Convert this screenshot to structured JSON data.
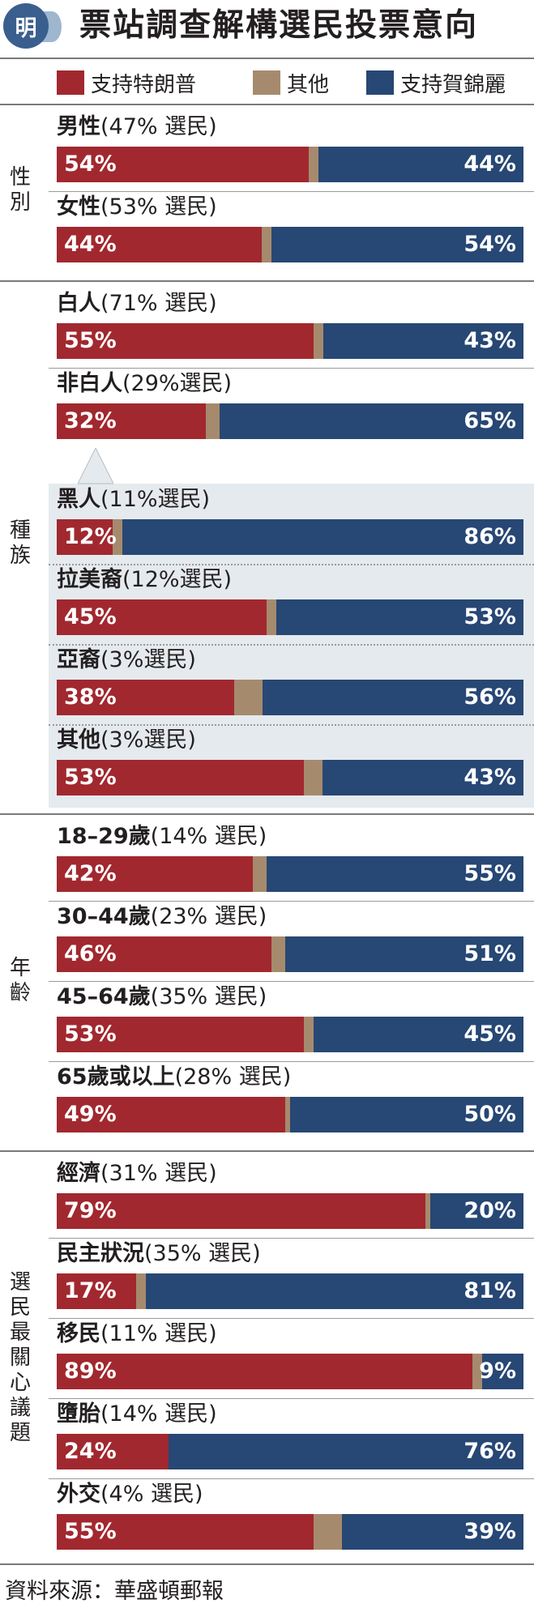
{
  "header": {
    "logo_char": "明",
    "title": "票站調查解構選民投票意向"
  },
  "legend": {
    "items": [
      {
        "label": "支持特朗普",
        "color": "#a1282f"
      },
      {
        "label": "其他",
        "color": "#a68a6d"
      },
      {
        "label": "支持賀錦麗",
        "color": "#274774"
      }
    ]
  },
  "groups": [
    {
      "label": "性\n別"
    },
    {
      "label": "種\n族"
    },
    {
      "label": "年\n齡"
    },
    {
      "label": "選\n民\n最\n關\n心\n議\n題"
    }
  ],
  "chart_data": {
    "type": "bar",
    "title": "票站調查解構選民投票意向",
    "stacked": true,
    "orientation": "horizontal",
    "series_names": [
      "支持特朗普",
      "其他",
      "支持賀錦麗"
    ],
    "rows": [
      {
        "group": 0,
        "name": "男性",
        "share": "(47% 選民)",
        "trump": 54,
        "other": 2,
        "harris": 44
      },
      {
        "group": 0,
        "name": "女性",
        "share": "(53% 選民)",
        "trump": 44,
        "other": 2,
        "harris": 54
      },
      {
        "group": 1,
        "name": "白人",
        "share": "(71% 選民)",
        "trump": 55,
        "other": 2,
        "harris": 43
      },
      {
        "group": 1,
        "name": "非白人",
        "share": "(29%選民)",
        "trump": 32,
        "other": 3,
        "harris": 65
      },
      {
        "group": 1,
        "name": "黑人",
        "share": "(11%選民)",
        "trump": 12,
        "other": 2,
        "harris": 86,
        "sub": true
      },
      {
        "group": 1,
        "name": "拉美裔",
        "share": "(12%選民)",
        "trump": 45,
        "other": 2,
        "harris": 53,
        "sub": true
      },
      {
        "group": 1,
        "name": "亞裔",
        "share": "(3%選民)",
        "trump": 38,
        "other": 6,
        "harris": 56,
        "sub": true
      },
      {
        "group": 1,
        "name": "其他",
        "share": "(3%選民)",
        "trump": 53,
        "other": 4,
        "harris": 43,
        "sub": true
      },
      {
        "group": 2,
        "name": "18–29歲",
        "share": "(14% 選民)",
        "trump": 42,
        "other": 3,
        "harris": 55
      },
      {
        "group": 2,
        "name": "30–44歲",
        "share": "(23% 選民)",
        "trump": 46,
        "other": 3,
        "harris": 51
      },
      {
        "group": 2,
        "name": "45–64歲",
        "share": "(35% 選民)",
        "trump": 53,
        "other": 2,
        "harris": 45
      },
      {
        "group": 2,
        "name": "65歲或以上",
        "share": "(28% 選民)",
        "trump": 49,
        "other": 1,
        "harris": 50
      },
      {
        "group": 3,
        "name": "經濟",
        "share": "(31% 選民)",
        "trump": 79,
        "other": 1,
        "harris": 20
      },
      {
        "group": 3,
        "name": "民主狀況",
        "share": "(35% 選民)",
        "trump": 17,
        "other": 2,
        "harris": 81
      },
      {
        "group": 3,
        "name": "移民",
        "share": "(11% 選民)",
        "trump": 89,
        "other": 2,
        "harris": 9
      },
      {
        "group": 3,
        "name": "墮胎",
        "share": "(14% 選民)",
        "trump": 24,
        "other": 0,
        "harris": 76
      },
      {
        "group": 3,
        "name": "外交",
        "share": "(4% 選民)",
        "trump": 55,
        "other": 6,
        "harris": 39
      }
    ]
  },
  "footer": {
    "source": "資料來源：華盛頓郵報"
  }
}
